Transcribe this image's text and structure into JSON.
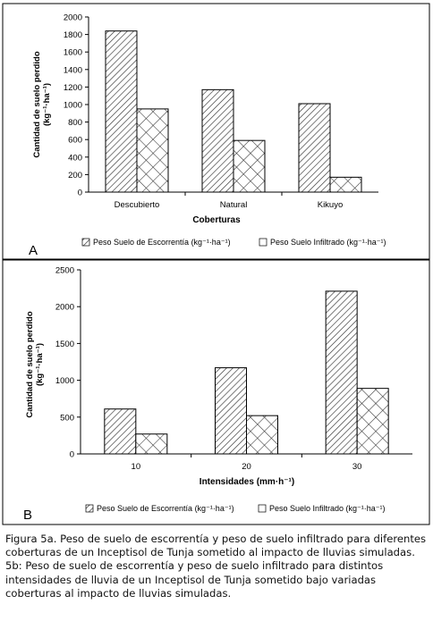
{
  "chart_data": [
    {
      "panel_label": "A",
      "type": "bar",
      "xlabel": "Coberturas",
      "ylabel_line1": "Cantidad de suelo perdido",
      "ylabel_line2": "(kg⁻¹·ha⁻¹)",
      "categories": [
        "Descubierto",
        "Natural",
        "Kikuyo"
      ],
      "ylim": [
        0,
        2000
      ],
      "yticks": [
        0,
        200,
        400,
        600,
        800,
        1000,
        1200,
        1400,
        1600,
        1800,
        2000
      ],
      "grid": false,
      "legend_position": "bottom",
      "series": [
        {
          "name": "Peso Suelo de Escorrentía (kg⁻¹·ha⁻¹)",
          "pattern": "diagonal-hatch",
          "values": [
            1840,
            1170,
            1010
          ]
        },
        {
          "name": "Peso Suelo Infiltrado (kg⁻¹·ha⁻¹)",
          "pattern": "crosshatch",
          "values": [
            950,
            590,
            170
          ]
        }
      ]
    },
    {
      "panel_label": "B",
      "type": "bar",
      "xlabel": "Intensidades (mm·h⁻¹)",
      "ylabel_line1": "Cantidad de suelo perdido",
      "ylabel_line2": "(kg⁻¹·ha⁻¹)",
      "categories": [
        "10",
        "20",
        "30"
      ],
      "ylim": [
        0,
        2500
      ],
      "yticks": [
        0,
        500,
        1000,
        1500,
        2000,
        2500
      ],
      "grid": false,
      "legend_position": "bottom",
      "series": [
        {
          "name": "Peso Suelo de Escorrentía (kg⁻¹·ha⁻¹)",
          "pattern": "diagonal-hatch",
          "values": [
            610,
            1170,
            2210
          ]
        },
        {
          "name": "Peso Suelo Infiltrado (kg⁻¹·ha⁻¹)",
          "pattern": "crosshatch",
          "values": [
            270,
            520,
            890
          ]
        }
      ]
    }
  ],
  "caption": {
    "line1": "Figura 5a. Peso de suelo de escorrentía y peso de suelo infiltrado para diferentes",
    "line2": "coberturas de un Inceptisol de Tunja sometido al impacto de lluvias simuladas.",
    "line3": "5b: Peso de suelo de escorrentía y peso de suelo infiltrado para distintos",
    "line4": "intensidades de lluvia de un Inceptisol de Tunja sometido bajo variadas",
    "line5": "coberturas al impacto de lluvias simuladas."
  },
  "colors": {
    "frame": "#000000",
    "bar_fill": "#ffffff",
    "hatch": "#333333"
  }
}
